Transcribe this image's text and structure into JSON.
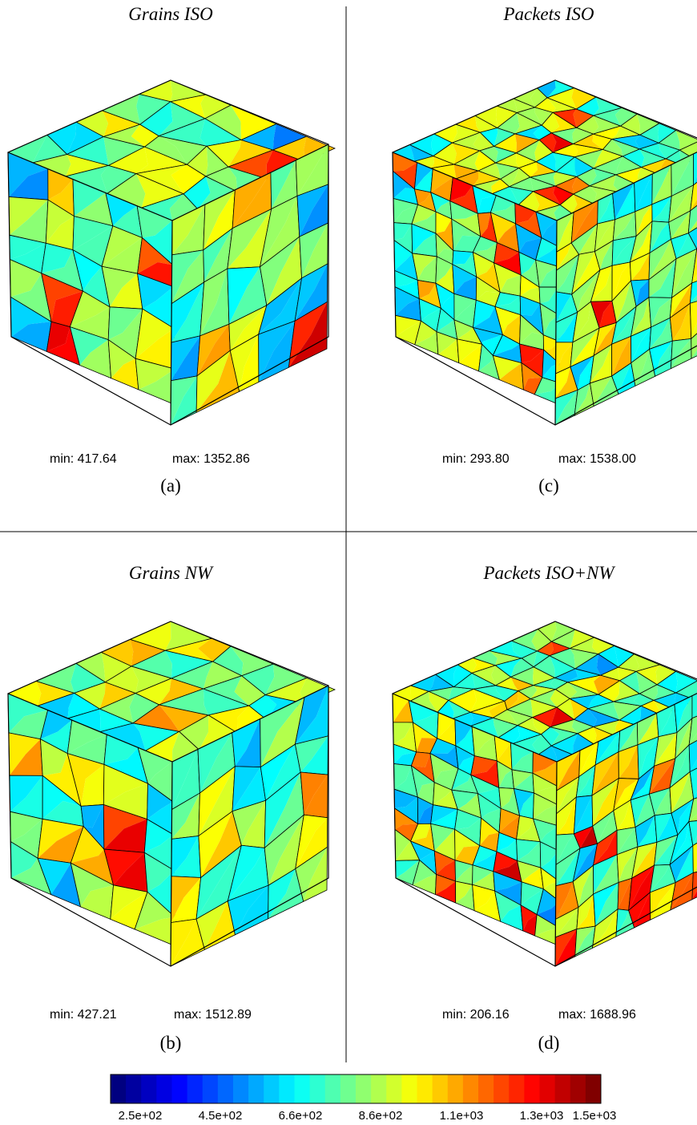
{
  "panels": [
    {
      "title": "Grains ISO",
      "min": "min: 417.64",
      "max": "max: 1352.86",
      "caption": "(a)"
    },
    {
      "title": "Packets ISO",
      "min": "min: 293.80",
      "max": "max: 1538.00",
      "caption": "(c)"
    },
    {
      "title": "Grains NW",
      "min": "min: 427.21",
      "max": "max: 1512.89",
      "caption": "(b)"
    },
    {
      "title": "Packets ISO+NW",
      "min": "min: 206.16",
      "max": "max: 1688.96",
      "caption": "(d)"
    }
  ],
  "colorbar": {
    "ticks": [
      "2.5e+02",
      "4.5e+02",
      "6.6e+02",
      "8.6e+02",
      "1.1e+03",
      "1.3e+03",
      "1.5e+03"
    ]
  }
}
